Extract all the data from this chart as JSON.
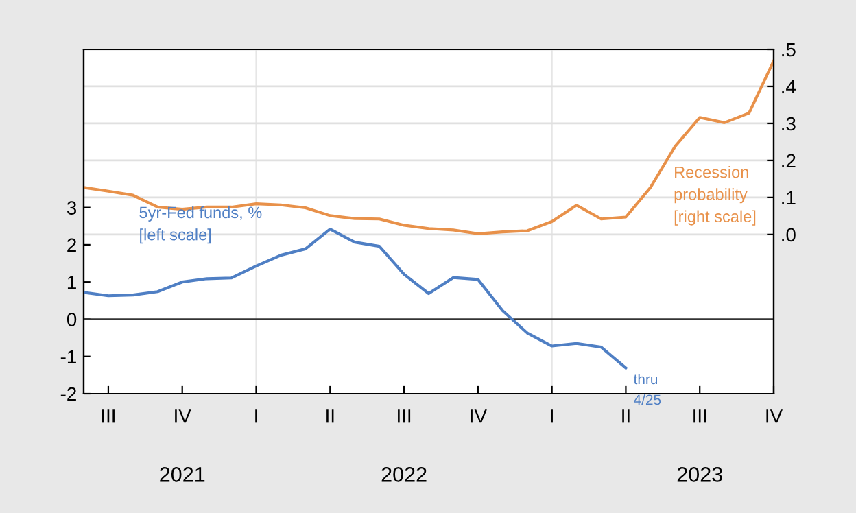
{
  "chart_data": {
    "type": "line",
    "categories": [
      null,
      "III",
      null,
      null,
      "IV",
      null,
      null,
      "I",
      null,
      null,
      "II",
      null,
      null,
      "III",
      null,
      null,
      "IV",
      null,
      null,
      "I",
      null,
      null,
      "II",
      null,
      null,
      "III",
      null,
      null,
      "IV"
    ],
    "series": [
      {
        "name": "5yr-Fed funds, %\n[left scale]",
        "color": "#4f7fc4",
        "values": [
          0.72,
          0.63,
          0.65,
          0.74,
          1.0,
          1.09,
          1.11,
          1.43,
          1.72,
          1.89,
          2.42,
          2.07,
          1.96,
          1.21,
          0.69,
          1.12,
          1.07,
          0.23,
          -0.37,
          -0.72,
          -0.65,
          -0.75,
          -1.31,
          null,
          null,
          null,
          null,
          null,
          null
        ]
      },
      {
        "name": "Recession\nprobability\n[right scale]",
        "color": "#e8914a",
        "axis": "y2",
        "values": [
          0.127,
          0.117,
          0.106,
          0.074,
          0.068,
          0.074,
          0.074,
          0.083,
          0.08,
          0.072,
          0.051,
          0.043,
          0.042,
          0.025,
          0.016,
          0.012,
          0.002,
          0.007,
          0.01,
          0.035,
          0.079,
          0.042,
          0.047,
          0.127,
          0.238,
          0.316,
          0.302,
          0.328,
          0.469
        ]
      }
    ],
    "ylim": [
      -2,
      7.25
    ],
    "yticks": [
      -2,
      -1,
      0,
      1,
      2,
      3
    ],
    "y2lim": [
      -0.43,
      0.5
    ],
    "y2ticks": [
      {
        "value": 0,
        "label": ".0"
      },
      {
        "value": 0.1,
        "label": ".1"
      },
      {
        "value": 0.2,
        "label": ".2"
      },
      {
        "value": 0.3,
        "label": ".3"
      },
      {
        "value": 0.4,
        "label": ".4"
      },
      {
        "value": 0.5,
        "label": ".5"
      }
    ],
    "grid": "y2",
    "legend": false,
    "ref_lines": [
      {
        "axis": "y",
        "value": 0,
        "color": "#333333"
      }
    ],
    "annotations": [
      "thru\n4/25",
      "2021",
      "2022",
      "2023"
    ]
  }
}
